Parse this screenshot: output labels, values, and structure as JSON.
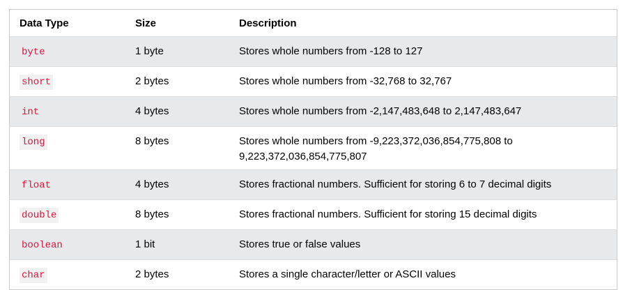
{
  "table": {
    "headers": [
      "Data Type",
      "Size",
      "Description"
    ],
    "rows": [
      {
        "type": "byte",
        "size": "1 byte",
        "desc": "Stores whole numbers from -128 to 127"
      },
      {
        "type": "short",
        "size": "2 bytes",
        "desc": "Stores whole numbers from -32,768 to 32,767"
      },
      {
        "type": "int",
        "size": "4 bytes",
        "desc": "Stores whole numbers from -2,147,483,648 to 2,147,483,647"
      },
      {
        "type": "long",
        "size": "8 bytes",
        "desc": "Stores whole numbers from -9,223,372,036,854,775,808 to 9,223,372,036,854,775,807"
      },
      {
        "type": "float",
        "size": "4 bytes",
        "desc": "Stores fractional numbers. Sufficient for storing 6 to 7 decimal digits"
      },
      {
        "type": "double",
        "size": "8 bytes",
        "desc": "Stores fractional numbers. Sufficient for storing 15 decimal digits"
      },
      {
        "type": "boolean",
        "size": "1 bit",
        "desc": "Stores true or false values"
      },
      {
        "type": "char",
        "size": "2 bytes",
        "desc": "Stores a single character/letter or ASCII values"
      }
    ]
  },
  "colors": {
    "type_text": "#dc143c",
    "stripe": "#e7e9eb",
    "border": "#cccccc"
  }
}
